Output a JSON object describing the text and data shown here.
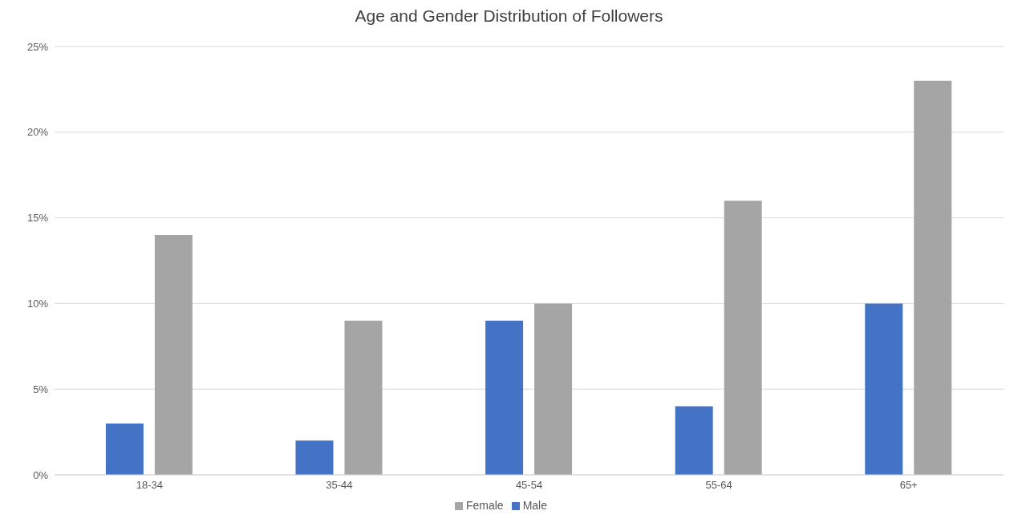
{
  "chart_data": {
    "type": "bar",
    "title": "Age and Gender Distribution of Followers",
    "categories": [
      "18-34",
      "35-44",
      "45-54",
      "55-64",
      "65+"
    ],
    "series": [
      {
        "name": "Male",
        "color": "#4472c4",
        "values": [
          3,
          2,
          9,
          4,
          10
        ]
      },
      {
        "name": "Female",
        "color": "#a5a5a5",
        "values": [
          14,
          9,
          10,
          16,
          23
        ]
      }
    ],
    "ylim": [
      0,
      25
    ],
    "yticks": [
      {
        "value": 0,
        "label": "0%"
      },
      {
        "value": 5,
        "label": "5%"
      },
      {
        "value": 10,
        "label": "10%"
      },
      {
        "value": 15,
        "label": "15%"
      },
      {
        "value": 20,
        "label": "20%"
      },
      {
        "value": 25,
        "label": "25%"
      }
    ],
    "grid": "y",
    "legend": "bottom"
  }
}
